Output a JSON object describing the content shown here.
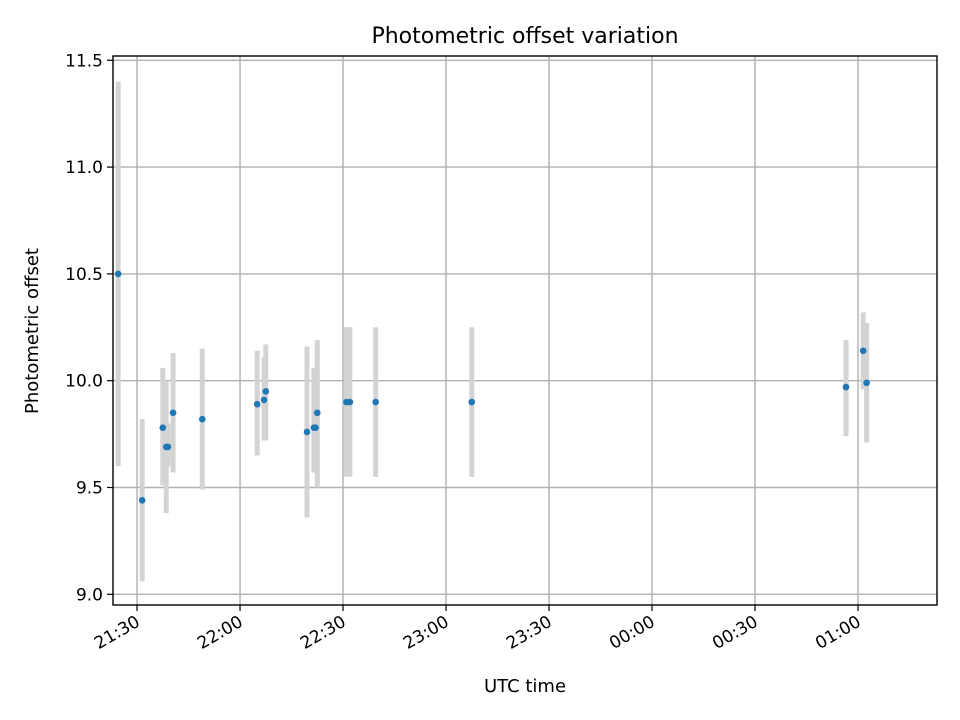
{
  "chart_data": {
    "type": "scatter",
    "title": "Photometric offset variation",
    "xlabel": "UTC time",
    "ylabel": "Photometric offset",
    "ylim": [
      8.95,
      11.52
    ],
    "xlim": [
      "21:23",
      "01:23"
    ],
    "grid": true,
    "x_tick_labels": [
      "21:30",
      "22:00",
      "22:30",
      "23:00",
      "23:30",
      "00:00",
      "00:30",
      "01:00"
    ],
    "y_tick_values": [
      9.0,
      9.5,
      10.0,
      10.5,
      11.0,
      11.5
    ],
    "y_tick_labels": [
      "9.0",
      "9.5",
      "10.0",
      "10.5",
      "11.0",
      "11.5"
    ],
    "colors": {
      "point": "#1f77b4",
      "errorbar": "#d3d3d3"
    },
    "series": [
      {
        "points": [
          {
            "x": "21:24:30",
            "y": 10.5,
            "ylow": 9.6,
            "yhigh": 11.4
          },
          {
            "x": "21:31:30",
            "y": 9.44,
            "ylow": 9.06,
            "yhigh": 9.82
          },
          {
            "x": "21:37:30",
            "y": 9.78,
            "ylow": 9.51,
            "yhigh": 10.06
          },
          {
            "x": "21:38:30",
            "y": 9.69,
            "ylow": 9.38,
            "yhigh": 10.0
          },
          {
            "x": "21:39:00",
            "y": 9.69,
            "ylow": 9.6,
            "yhigh": 9.8
          },
          {
            "x": "21:40:30",
            "y": 9.85,
            "ylow": 9.57,
            "yhigh": 10.13
          },
          {
            "x": "21:49:00",
            "y": 9.82,
            "ylow": 9.49,
            "yhigh": 10.15
          },
          {
            "x": "22:05:00",
            "y": 9.89,
            "ylow": 9.65,
            "yhigh": 10.14
          },
          {
            "x": "22:07:00",
            "y": 9.91,
            "ylow": 9.72,
            "yhigh": 10.11
          },
          {
            "x": "22:07:30",
            "y": 9.95,
            "ylow": 9.72,
            "yhigh": 10.17
          },
          {
            "x": "22:19:30",
            "y": 9.76,
            "ylow": 9.36,
            "yhigh": 10.16
          },
          {
            "x": "22:21:30",
            "y": 9.78,
            "ylow": 9.57,
            "yhigh": 10.06
          },
          {
            "x": "22:22:00",
            "y": 9.78,
            "ylow": 9.62,
            "yhigh": 9.95
          },
          {
            "x": "22:22:30",
            "y": 9.85,
            "ylow": 9.5,
            "yhigh": 10.19
          },
          {
            "x": "22:31:00",
            "y": 9.9,
            "ylow": 9.55,
            "yhigh": 10.25
          },
          {
            "x": "22:32:00",
            "y": 9.9,
            "ylow": 9.55,
            "yhigh": 10.25
          },
          {
            "x": "22:39:30",
            "y": 9.9,
            "ylow": 9.55,
            "yhigh": 10.25
          },
          {
            "x": "23:07:30",
            "y": 9.9,
            "ylow": 9.55,
            "yhigh": 10.25
          },
          {
            "x": "00:56:30",
            "y": 9.97,
            "ylow": 9.74,
            "yhigh": 10.19
          },
          {
            "x": "01:01:30",
            "y": 10.14,
            "ylow": 9.96,
            "yhigh": 10.32
          },
          {
            "x": "01:02:30",
            "y": 9.99,
            "ylow": 9.71,
            "yhigh": 10.27
          }
        ]
      }
    ]
  }
}
